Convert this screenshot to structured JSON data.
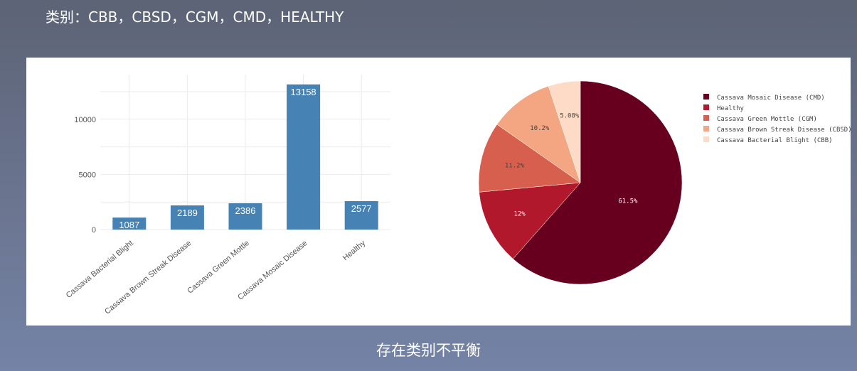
{
  "header": {
    "title": "类别：CBB，CBSD，CGM，CMD，HEALTHY"
  },
  "footer": {
    "caption": "存在类别不平衡"
  },
  "chart_data": [
    {
      "type": "bar",
      "categories": [
        "Cassava Bacterial Blight",
        "Cassava Brown Streak Disease",
        "Cassava Green Mottle",
        "Cassava Mosaic Disease",
        "Healthy"
      ],
      "values": [
        1087,
        2189,
        2386,
        13158,
        2577
      ],
      "yticks": [
        0,
        5000,
        10000
      ],
      "ylim": [
        0,
        13400
      ],
      "grid": true,
      "bar_color": "#4682b4"
    },
    {
      "type": "pie",
      "slices": [
        {
          "label": "Cassava Mosaic Disease (CMD)",
          "percent_label": "61.5%",
          "value": 61.5,
          "color": "#67001f"
        },
        {
          "label": "Healthy",
          "percent_label": "12%",
          "value": 12.0,
          "color": "#b2182b"
        },
        {
          "label": "Cassava Green Mottle (CGM)",
          "percent_label": "11.2%",
          "value": 11.2,
          "color": "#d6604d"
        },
        {
          "label": "Cassava Brown Streak Disease (CBSD)",
          "percent_label": "10.2%",
          "value": 10.2,
          "color": "#f4a582"
        },
        {
          "label": "Cassava Bacterial Blight (CBB)",
          "percent_label": "5.08%",
          "value": 5.08,
          "color": "#fddbc7"
        }
      ],
      "legend_placement": "right"
    }
  ]
}
